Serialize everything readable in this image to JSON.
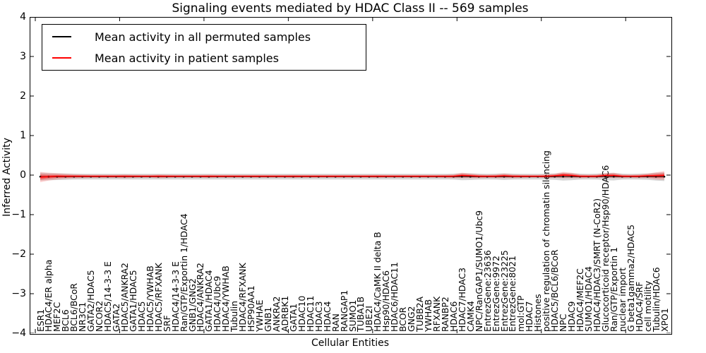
{
  "figure": {
    "title": "Signaling events mediated by HDAC Class II -- 569 samples",
    "xlabel": "Cellular Entities",
    "ylabel": "Inferred Activity"
  },
  "legend": {
    "items": [
      {
        "label": "Mean activity in all permuted samples",
        "color": "#000000"
      },
      {
        "label": "Mean activity in patient samples",
        "color": "#ff0000"
      }
    ]
  },
  "chart_data": {
    "type": "line",
    "title": "Signaling events mediated by HDAC Class II -- 569 samples",
    "xlabel": "Cellular Entities",
    "ylabel": "Inferred Activity",
    "ylim": [
      -4,
      4
    ],
    "yticks": [
      "4",
      "3",
      "2",
      "1",
      "0",
      "−1",
      "−2",
      "−3",
      "−4"
    ],
    "grid": false,
    "legend_position": "upper left",
    "categories": [
      "ESR1",
      "HDAC4/ER alpha",
      "MEF2C",
      "BCL6",
      "BCL6/BCoR",
      "NR3C1",
      "GATA2/HDAC5",
      "NCOR2",
      "HDAC5/14-3-3 E",
      "GATA2",
      "HDAC5/ANKRA2",
      "GATA1/HDAC5",
      "HDAC5",
      "HDAC5/YWHAB",
      "HDAC5/RFXANK",
      "SRF",
      "HDAC4/14-3-3 E",
      "Ran/GTP/Exportin 1/HDAC4",
      "GNB1/GNG2",
      "HDAC4/ANKRA2",
      "GATA1/HDAC4",
      "HDAC4/Ubc9",
      "HDAC4/YWHAB",
      "Tubulin",
      "HDAC4/RFXANK",
      "HSP90AA1",
      "YWHAE",
      "GNB1",
      "ANKRA2",
      "ADRBK1",
      "GATA1",
      "HDAC10",
      "HDAC11",
      "HDAC3",
      "HDAC4",
      "RAN",
      "RANGAP1",
      "SUMO1",
      "TUBA1B",
      "UBE2I",
      "HDAC4/CaMK II delta B",
      "Hsp90/HDAC6",
      "HDAC6/HDAC11",
      "BCOR",
      "GNG2",
      "TUBB2A",
      "YWHAB",
      "RFXANK",
      "RANBP2",
      "HDAC6",
      "HDAC7/HDAC3",
      "CAMK4",
      "NPC/RanGAP1/SUMO1/Ubc9",
      "EntrezGene:23636",
      "EntrezGene:9972",
      "EntrezGene:23225",
      "EntrezGene:8021",
      "mol:GTP",
      "HDAC7",
      "Histones",
      "positive regulation of chromatin silencing",
      "HDAC5/BCL6/BCoR",
      "NPC",
      "HDAC9",
      "HDAC4/MEF2C",
      "SUMO1/HDAC4",
      "HDAC4/HDAC3/SMRT (N-CoR2)",
      "Glucocorticoid receptor/Hsp90/HDAC6",
      "Ran/GTP/Exportin 1",
      "nuclear import",
      "G beta1gamma2/HDAC5",
      "HDAC4/SRF",
      "cell motility",
      "Tubulin/HDAC6",
      "XPO1"
    ],
    "series": [
      {
        "name": "Mean activity in all permuted samples",
        "color": "#000000",
        "band_color": "rgba(0,0,0,0.16)",
        "values": [
          -0.04,
          -0.04,
          -0.04,
          -0.04,
          -0.04,
          -0.04,
          -0.04,
          -0.04,
          -0.04,
          -0.04,
          -0.04,
          -0.04,
          -0.04,
          -0.04,
          -0.04,
          -0.04,
          -0.04,
          -0.04,
          -0.04,
          -0.04,
          -0.04,
          -0.04,
          -0.04,
          -0.04,
          -0.04,
          -0.04,
          -0.04,
          -0.04,
          -0.04,
          -0.04,
          -0.04,
          -0.04,
          -0.04,
          -0.04,
          -0.04,
          -0.04,
          -0.04,
          -0.04,
          -0.04,
          -0.04,
          -0.04,
          -0.04,
          -0.04,
          -0.04,
          -0.04,
          -0.04,
          -0.04,
          -0.04,
          -0.04,
          -0.04,
          -0.04,
          -0.04,
          -0.04,
          -0.04,
          -0.04,
          -0.04,
          -0.04,
          -0.04,
          -0.04,
          -0.04,
          -0.04,
          -0.04,
          -0.04,
          -0.04,
          -0.04,
          -0.04,
          -0.04,
          -0.04,
          -0.04,
          -0.04,
          -0.04,
          -0.04,
          -0.04,
          -0.04,
          -0.04
        ],
        "band_halfwidth": [
          0.1,
          0.09,
          0.085,
          0.08,
          0.075,
          0.07,
          0.07,
          0.07,
          0.07,
          0.07,
          0.07,
          0.07,
          0.07,
          0.07,
          0.07,
          0.07,
          0.07,
          0.07,
          0.07,
          0.07,
          0.07,
          0.07,
          0.07,
          0.07,
          0.07,
          0.07,
          0.07,
          0.07,
          0.07,
          0.07,
          0.07,
          0.07,
          0.07,
          0.07,
          0.07,
          0.07,
          0.07,
          0.07,
          0.07,
          0.07,
          0.07,
          0.07,
          0.07,
          0.07,
          0.07,
          0.07,
          0.07,
          0.07,
          0.07,
          0.075,
          0.09,
          0.085,
          0.075,
          0.07,
          0.075,
          0.085,
          0.075,
          0.07,
          0.07,
          0.07,
          0.075,
          0.08,
          0.1,
          0.09,
          0.075,
          0.07,
          0.075,
          0.09,
          0.095,
          0.075,
          0.07,
          0.075,
          0.08,
          0.1,
          0.11
        ]
      },
      {
        "name": "Mean activity in patient samples",
        "color": "#ff0000",
        "band_color": "rgba(255,0,0,0.18)",
        "values": [
          -0.05,
          -0.04,
          -0.03,
          -0.03,
          -0.03,
          -0.03,
          -0.03,
          -0.03,
          -0.03,
          -0.03,
          -0.03,
          -0.03,
          -0.03,
          -0.03,
          -0.03,
          -0.03,
          -0.03,
          -0.03,
          -0.03,
          -0.03,
          -0.03,
          -0.03,
          -0.03,
          -0.03,
          -0.03,
          -0.03,
          -0.03,
          -0.03,
          -0.03,
          -0.03,
          -0.03,
          -0.03,
          -0.03,
          -0.03,
          -0.03,
          -0.03,
          -0.03,
          -0.03,
          -0.03,
          -0.03,
          -0.03,
          -0.03,
          -0.03,
          -0.03,
          -0.03,
          -0.03,
          -0.03,
          -0.03,
          -0.03,
          -0.03,
          -0.01,
          -0.02,
          -0.03,
          -0.03,
          -0.03,
          -0.02,
          -0.03,
          -0.03,
          -0.03,
          -0.03,
          -0.03,
          -0.02,
          0.0,
          -0.01,
          -0.03,
          -0.03,
          -0.03,
          -0.01,
          -0.01,
          -0.03,
          -0.03,
          -0.03,
          -0.02,
          -0.02,
          -0.01
        ],
        "band_halfwidth": [
          0.13,
          0.1,
          0.08,
          0.065,
          0.055,
          0.05,
          0.045,
          0.045,
          0.045,
          0.045,
          0.05,
          0.045,
          0.04,
          0.04,
          0.05,
          0.045,
          0.04,
          0.04,
          0.04,
          0.04,
          0.045,
          0.04,
          0.04,
          0.04,
          0.04,
          0.04,
          0.04,
          0.04,
          0.04,
          0.04,
          0.045,
          0.04,
          0.04,
          0.04,
          0.04,
          0.04,
          0.04,
          0.04,
          0.04,
          0.04,
          0.045,
          0.04,
          0.04,
          0.04,
          0.04,
          0.04,
          0.04,
          0.04,
          0.045,
          0.05,
          0.07,
          0.06,
          0.05,
          0.045,
          0.05,
          0.06,
          0.05,
          0.045,
          0.04,
          0.04,
          0.05,
          0.055,
          0.08,
          0.07,
          0.05,
          0.045,
          0.05,
          0.06,
          0.07,
          0.05,
          0.045,
          0.05,
          0.06,
          0.09,
          0.11
        ]
      }
    ]
  }
}
